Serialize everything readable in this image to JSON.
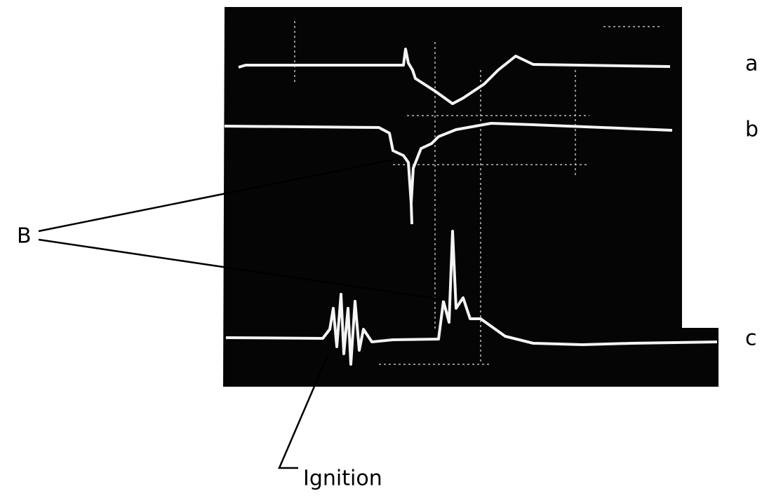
{
  "labels": {
    "trace_a": "a",
    "trace_b": "b",
    "trace_c": "c",
    "marker": "B",
    "ignition": "Ignition"
  }
}
